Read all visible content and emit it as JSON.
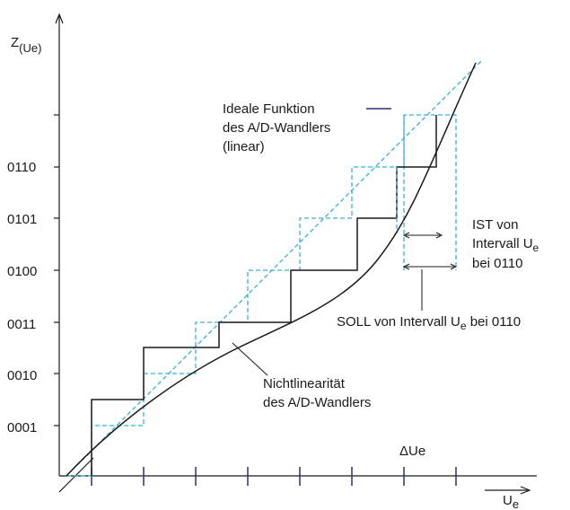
{
  "axes": {
    "y_label_main": "Z",
    "y_label_sub": "(Ue)",
    "x_label_main": "U",
    "x_label_sub": "e",
    "y_ticks": [
      "0001",
      "0010",
      "0011",
      "0100",
      "0101",
      "0110"
    ],
    "delta_label": "ΔUe"
  },
  "annotations": {
    "ideal_line1": "Ideale Funktion",
    "ideal_line2": "des A/D-Wandlers",
    "ideal_line3": "(linear)",
    "ist_line1": "IST von",
    "ist_line2_main": "Intervall U",
    "ist_line2_sub": "e",
    "ist_line3": "bei 0110",
    "soll_main": "SOLL von Intervall U",
    "soll_sub": "e",
    "soll_end": " bei 0110",
    "nonlin_line1": "Nichtlinearität",
    "nonlin_line2": "des A/D-Wandlers"
  },
  "colors": {
    "ideal": "#3ab0d6",
    "legend_marker": "#2b2f7a",
    "ticks": "#2b2f7a",
    "ink": "#1a1a1a"
  }
}
